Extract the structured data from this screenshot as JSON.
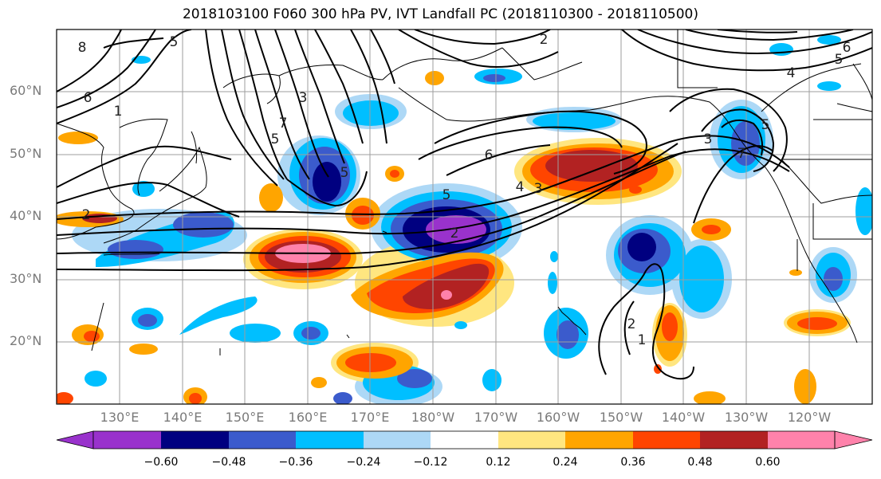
{
  "title": "2018103100 F060 300 hPa PV, IVT Landfall PC (2018110300 - 2018110500)",
  "map": {
    "lat_labels": [
      "60°N",
      "50°N",
      "40°N",
      "30°N",
      "20°N"
    ],
    "lon_labels": [
      "130°E",
      "140°E",
      "150°E",
      "160°E",
      "170°E",
      "180°W",
      "170°W",
      "160°W",
      "150°W",
      "140°W",
      "130°W",
      "120°W"
    ],
    "contour_labels": [
      "8",
      "6",
      "5",
      "1",
      "7",
      "5",
      "3",
      "2",
      "6",
      "5",
      "4",
      "3",
      "2",
      "5",
      "6",
      "5",
      "4",
      "3",
      "7",
      "5",
      "2",
      "1",
      "2"
    ]
  },
  "colorbar": {
    "colors": [
      "#9932cc",
      "#000080",
      "#3b5bcc",
      "#00bfff",
      "#add8f6",
      "#ffffff",
      "#ffe680",
      "#ffa500",
      "#ff4500",
      "#b22222",
      "#ff82ab"
    ],
    "tick_labels": [
      "−0.60",
      "−0.48",
      "−0.36",
      "−0.24",
      "−0.12",
      "0.12",
      "0.24",
      "0.36",
      "0.48",
      "0.60"
    ]
  }
}
